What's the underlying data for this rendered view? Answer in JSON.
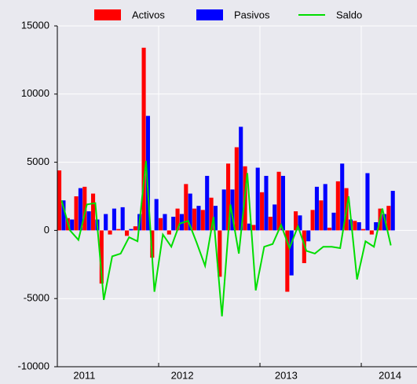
{
  "chart_data": {
    "type": "bar-line",
    "x": [
      0,
      1,
      2,
      3,
      4,
      5,
      6,
      7,
      8,
      9,
      10,
      11,
      12,
      13,
      14,
      15,
      16,
      17,
      18,
      19,
      20,
      21,
      22,
      23,
      24,
      25,
      26,
      27,
      28,
      29,
      30,
      31,
      32,
      33,
      34,
      35,
      36,
      37,
      38,
      39
    ],
    "xlim": [
      0,
      42.6
    ],
    "xticks": [
      {
        "value": 3.2,
        "label": "2011"
      },
      {
        "value": 14.8,
        "label": "2012"
      },
      {
        "value": 27.1,
        "label": "2013"
      },
      {
        "value": 39.4,
        "label": "2014"
      }
    ],
    "xgrid": [
      12,
      24,
      36
    ],
    "ylim": [
      -10000,
      15000
    ],
    "yticks": [
      -10000,
      -5000,
      0,
      5000,
      10000,
      15000
    ],
    "grid": true,
    "legend": "top",
    "series": [
      {
        "name": "Activos",
        "type": "bar",
        "color": "#ff0000",
        "values": [
          4400,
          900,
          2500,
          3200,
          2700,
          -3900,
          -300,
          100,
          -400,
          300,
          13400,
          -2000,
          900,
          -300,
          1600,
          3400,
          1600,
          1500,
          2400,
          -3400,
          4900,
          6100,
          4700,
          400,
          2800,
          1000,
          4300,
          -4500,
          1400,
          -2400,
          1500,
          2200,
          200,
          3600,
          3100,
          700,
          100,
          -300,
          1600,
          1800
        ]
      },
      {
        "name": "Pasivos",
        "type": "bar",
        "color": "#0000ff",
        "values": [
          2200,
          800,
          3100,
          1400,
          800,
          1200,
          1600,
          1700,
          100,
          1200,
          8400,
          2300,
          1200,
          1000,
          1200,
          2700,
          1800,
          4000,
          1800,
          3000,
          3000,
          7600,
          500,
          4600,
          4000,
          1900,
          4000,
          -3300,
          1100,
          -800,
          3200,
          3400,
          1300,
          4900,
          800,
          600,
          4200,
          600,
          1200,
          2900
        ]
      },
      {
        "name": "Saldo",
        "type": "line",
        "color": "#00dd00",
        "values": [
          2200,
          0,
          -700,
          1900,
          2000,
          -5100,
          -1900,
          -1700,
          -500,
          -800,
          5100,
          -4500,
          -300,
          -1200,
          500,
          700,
          -900,
          -2600,
          1000,
          -6300,
          1900,
          -1700,
          4200,
          -4400,
          -1200,
          -1000,
          400,
          -1300,
          300,
          -1500,
          -1700,
          -1200,
          -1200,
          -1300,
          2500,
          -3600,
          -800,
          -1200,
          1600,
          -1100
        ]
      }
    ]
  }
}
